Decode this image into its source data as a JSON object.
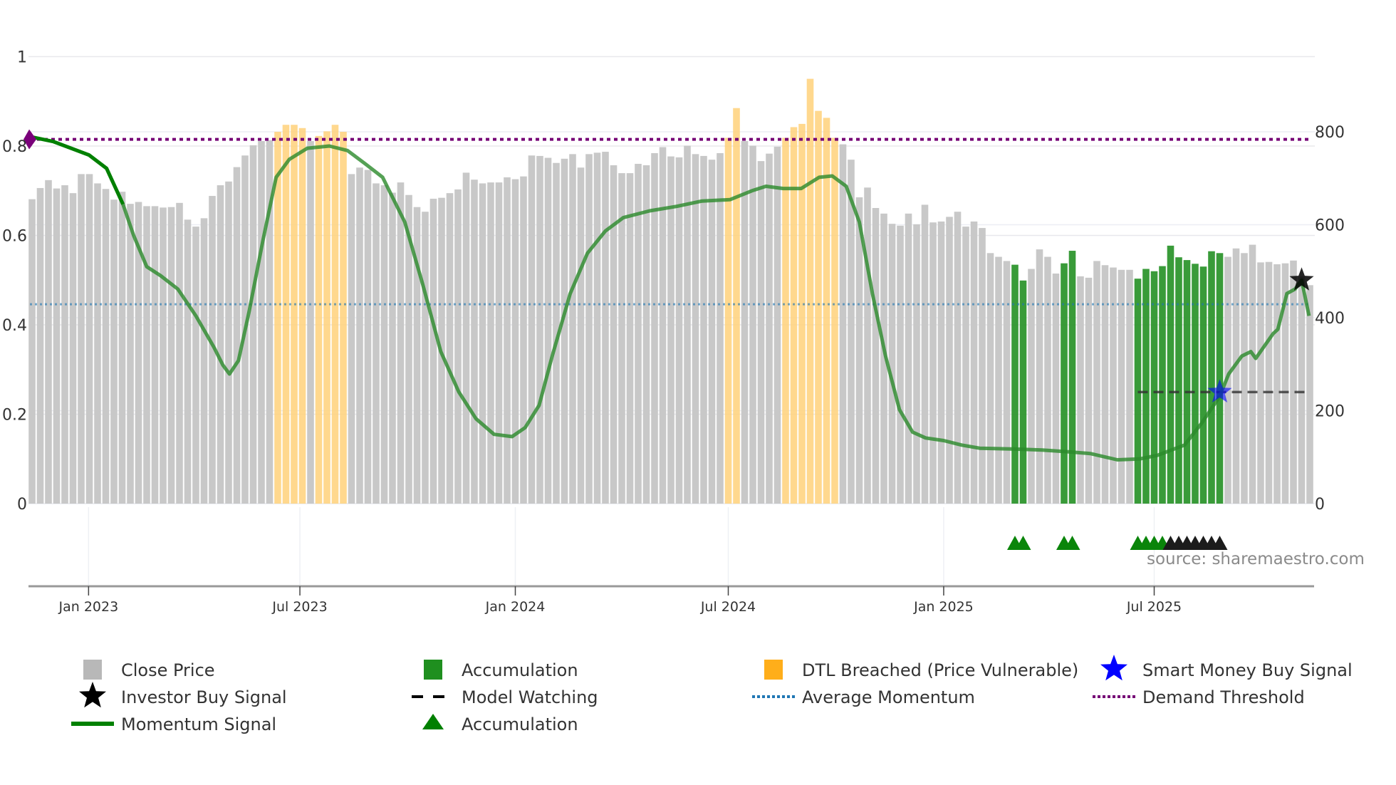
{
  "chart_data": {
    "type": "bar",
    "title": "",
    "x_unit": "weeks",
    "x_start": "2022-11-14",
    "left_axis": {
      "ylim": [
        0,
        1
      ],
      "ticks": [
        "0",
        "0.2",
        "0.4",
        "0.6",
        "0.8",
        "1"
      ],
      "tick_values": [
        0,
        0.2,
        0.4,
        0.6,
        0.8,
        1
      ]
    },
    "right_axis": {
      "ylim": [
        0,
        800
      ],
      "ticks": [
        "0",
        "200",
        "400",
        "600",
        "800"
      ],
      "tick_values": [
        0,
        200,
        400,
        600,
        800
      ]
    },
    "x_ticks": [
      {
        "label": "Jan 2023",
        "week": 6.9
      },
      {
        "label": "Jul 2023",
        "week": 32.7
      },
      {
        "label": "Jan 2024",
        "week": 59
      },
      {
        "label": "Jul 2024",
        "week": 85
      },
      {
        "label": "Jan 2025",
        "week": 111.3
      },
      {
        "label": "Jul 2025",
        "week": 137
      }
    ],
    "close_price": [
      655,
      679,
      696,
      678,
      685,
      668,
      709,
      709,
      689,
      677,
      654,
      671,
      645,
      649,
      640,
      640,
      637,
      638,
      647,
      611,
      596,
      614,
      662,
      685,
      693,
      724,
      749,
      771,
      780,
      782,
      800,
      815,
      815,
      808,
      780,
      791,
      801,
      815,
      800,
      709,
      723,
      718,
      689,
      685,
      669,
      691,
      664,
      638,
      628,
      656,
      658,
      668,
      676,
      712,
      697,
      689,
      691,
      691,
      702,
      698,
      704,
      749,
      748,
      744,
      733,
      742,
      752,
      723,
      752,
      755,
      757,
      728,
      711,
      711,
      731,
      728,
      754,
      767,
      747,
      745,
      770,
      752,
      748,
      740,
      754,
      787,
      851,
      780,
      770,
      737,
      753,
      768,
      787,
      810,
      817,
      914,
      845,
      830,
      787,
      773,
      740,
      659,
      680,
      636,
      624,
      602,
      598,
      624,
      601,
      643,
      605,
      607,
      617,
      628,
      596,
      607,
      593,
      539,
      531,
      522,
      514,
      480,
      505,
      547,
      531,
      495,
      517,
      544,
      489,
      486,
      522,
      513,
      508,
      503,
      503,
      484,
      505,
      500,
      511,
      555,
      530,
      524,
      516,
      510,
      543,
      539,
      531,
      549,
      539,
      557,
      519,
      520,
      515,
      517,
      523,
      489,
      470
    ],
    "dtl_breached_weeks": [
      30,
      31,
      32,
      33,
      35,
      36,
      37,
      38,
      85,
      86,
      92,
      93,
      94,
      95,
      96,
      97,
      98
    ],
    "accumulation_weeks": [
      120,
      121,
      126,
      127,
      135,
      136,
      137,
      138,
      139,
      140,
      141,
      142,
      143,
      144,
      145
    ],
    "momentum": [
      [
        0,
        0.82
      ],
      [
        2.6,
        0.81
      ],
      [
        6.95,
        0.78
      ],
      [
        9.1,
        0.75
      ],
      [
        11.1,
        0.67
      ],
      [
        12.4,
        0.6
      ],
      [
        14,
        0.53
      ],
      [
        15.7,
        0.51
      ],
      [
        17.8,
        0.48
      ],
      [
        20,
        0.42
      ],
      [
        22.2,
        0.35
      ],
      [
        23.3,
        0.31
      ],
      [
        24.1,
        0.29
      ],
      [
        25.2,
        0.32
      ],
      [
        26.5,
        0.43
      ],
      [
        28.2,
        0.59
      ],
      [
        29.8,
        0.73
      ],
      [
        31.4,
        0.77
      ],
      [
        33.6,
        0.795
      ],
      [
        36.3,
        0.8
      ],
      [
        38.5,
        0.79
      ],
      [
        40.7,
        0.76
      ],
      [
        42.8,
        0.73
      ],
      [
        45.5,
        0.63
      ],
      [
        47.7,
        0.49
      ],
      [
        49.9,
        0.34
      ],
      [
        52.1,
        0.25
      ],
      [
        54.2,
        0.19
      ],
      [
        56.4,
        0.155
      ],
      [
        58.6,
        0.15
      ],
      [
        60.2,
        0.17
      ],
      [
        61.9,
        0.22
      ],
      [
        63.5,
        0.33
      ],
      [
        65.7,
        0.47
      ],
      [
        67.8,
        0.56
      ],
      [
        70,
        0.61
      ],
      [
        72.2,
        0.64
      ],
      [
        75.4,
        0.655
      ],
      [
        78.7,
        0.665
      ],
      [
        81.8,
        0.677
      ],
      [
        85.2,
        0.68
      ],
      [
        87.9,
        0.7
      ],
      [
        89.6,
        0.71
      ],
      [
        91.7,
        0.705
      ],
      [
        93.9,
        0.705
      ],
      [
        96.1,
        0.73
      ],
      [
        97.7,
        0.733
      ],
      [
        99.4,
        0.71
      ],
      [
        101,
        0.63
      ],
      [
        102.6,
        0.47
      ],
      [
        104.2,
        0.33
      ],
      [
        105.9,
        0.21
      ],
      [
        107.5,
        0.16
      ],
      [
        109.1,
        0.147
      ],
      [
        111.3,
        0.141
      ],
      [
        113.5,
        0.131
      ],
      [
        115.7,
        0.124
      ],
      [
        120,
        0.122
      ],
      [
        123.3,
        0.12
      ],
      [
        126.5,
        0.116
      ],
      [
        129.2,
        0.112
      ],
      [
        132.5,
        0.098
      ],
      [
        135.2,
        0.1
      ],
      [
        137.4,
        0.108
      ],
      [
        140.7,
        0.131
      ],
      [
        142.8,
        0.18
      ],
      [
        145,
        0.24
      ],
      [
        146.1,
        0.29
      ],
      [
        147.7,
        0.33
      ],
      [
        148.8,
        0.34
      ],
      [
        149.4,
        0.325
      ],
      [
        151.5,
        0.38
      ],
      [
        152.1,
        0.39
      ],
      [
        153.2,
        0.47
      ],
      [
        154.2,
        0.48
      ],
      [
        155,
        0.5
      ],
      [
        155.9,
        0.42
      ]
    ],
    "average_momentum": 0.446,
    "demand_threshold": 0.815,
    "model_watching": {
      "price": 240,
      "from_week": 135,
      "to_week": 156
    },
    "smart_money_buy": [
      {
        "week": 145,
        "price": 240
      }
    ],
    "investor_buy": [
      {
        "week": 155,
        "momentum": 0.5
      }
    ],
    "threshold_marker": {
      "week": 0,
      "momentum": 0.815
    },
    "accumulation_markers": [
      120,
      121,
      126,
      127,
      135,
      136,
      137,
      138
    ],
    "dark_markers": [
      139,
      140,
      141,
      142,
      143,
      144,
      145
    ],
    "legend": {
      "placement": "bottom",
      "items": [
        {
          "label": "Close Price",
          "icon": "gray-square"
        },
        {
          "label": "Accumulation",
          "icon": "green-square"
        },
        {
          "label": "DTL Breached (Price Vulnerable)",
          "icon": "orange-square"
        },
        {
          "label": "Smart Money Buy Signal",
          "icon": "blue-star"
        },
        {
          "label": "Investor Buy Signal",
          "icon": "black-star"
        },
        {
          "label": "Model Watching",
          "icon": "black-dash"
        },
        {
          "label": "Average Momentum",
          "icon": "blue-dots"
        },
        {
          "label": "Demand Threshold",
          "icon": "purple-dots"
        },
        {
          "label": "Momentum Signal",
          "icon": "green-line"
        },
        {
          "label": "Accumulation",
          "icon": "green-triangle"
        }
      ]
    },
    "source": "source: sharemaestro.com",
    "colors": {
      "close": "#c8c8c8",
      "dtl": "#ffd17a",
      "accum": "#2e962e",
      "momentum": "#2a8a2a",
      "avg": "#1f77b4",
      "threshold": "#750075",
      "smart": "#0000ff"
    }
  }
}
